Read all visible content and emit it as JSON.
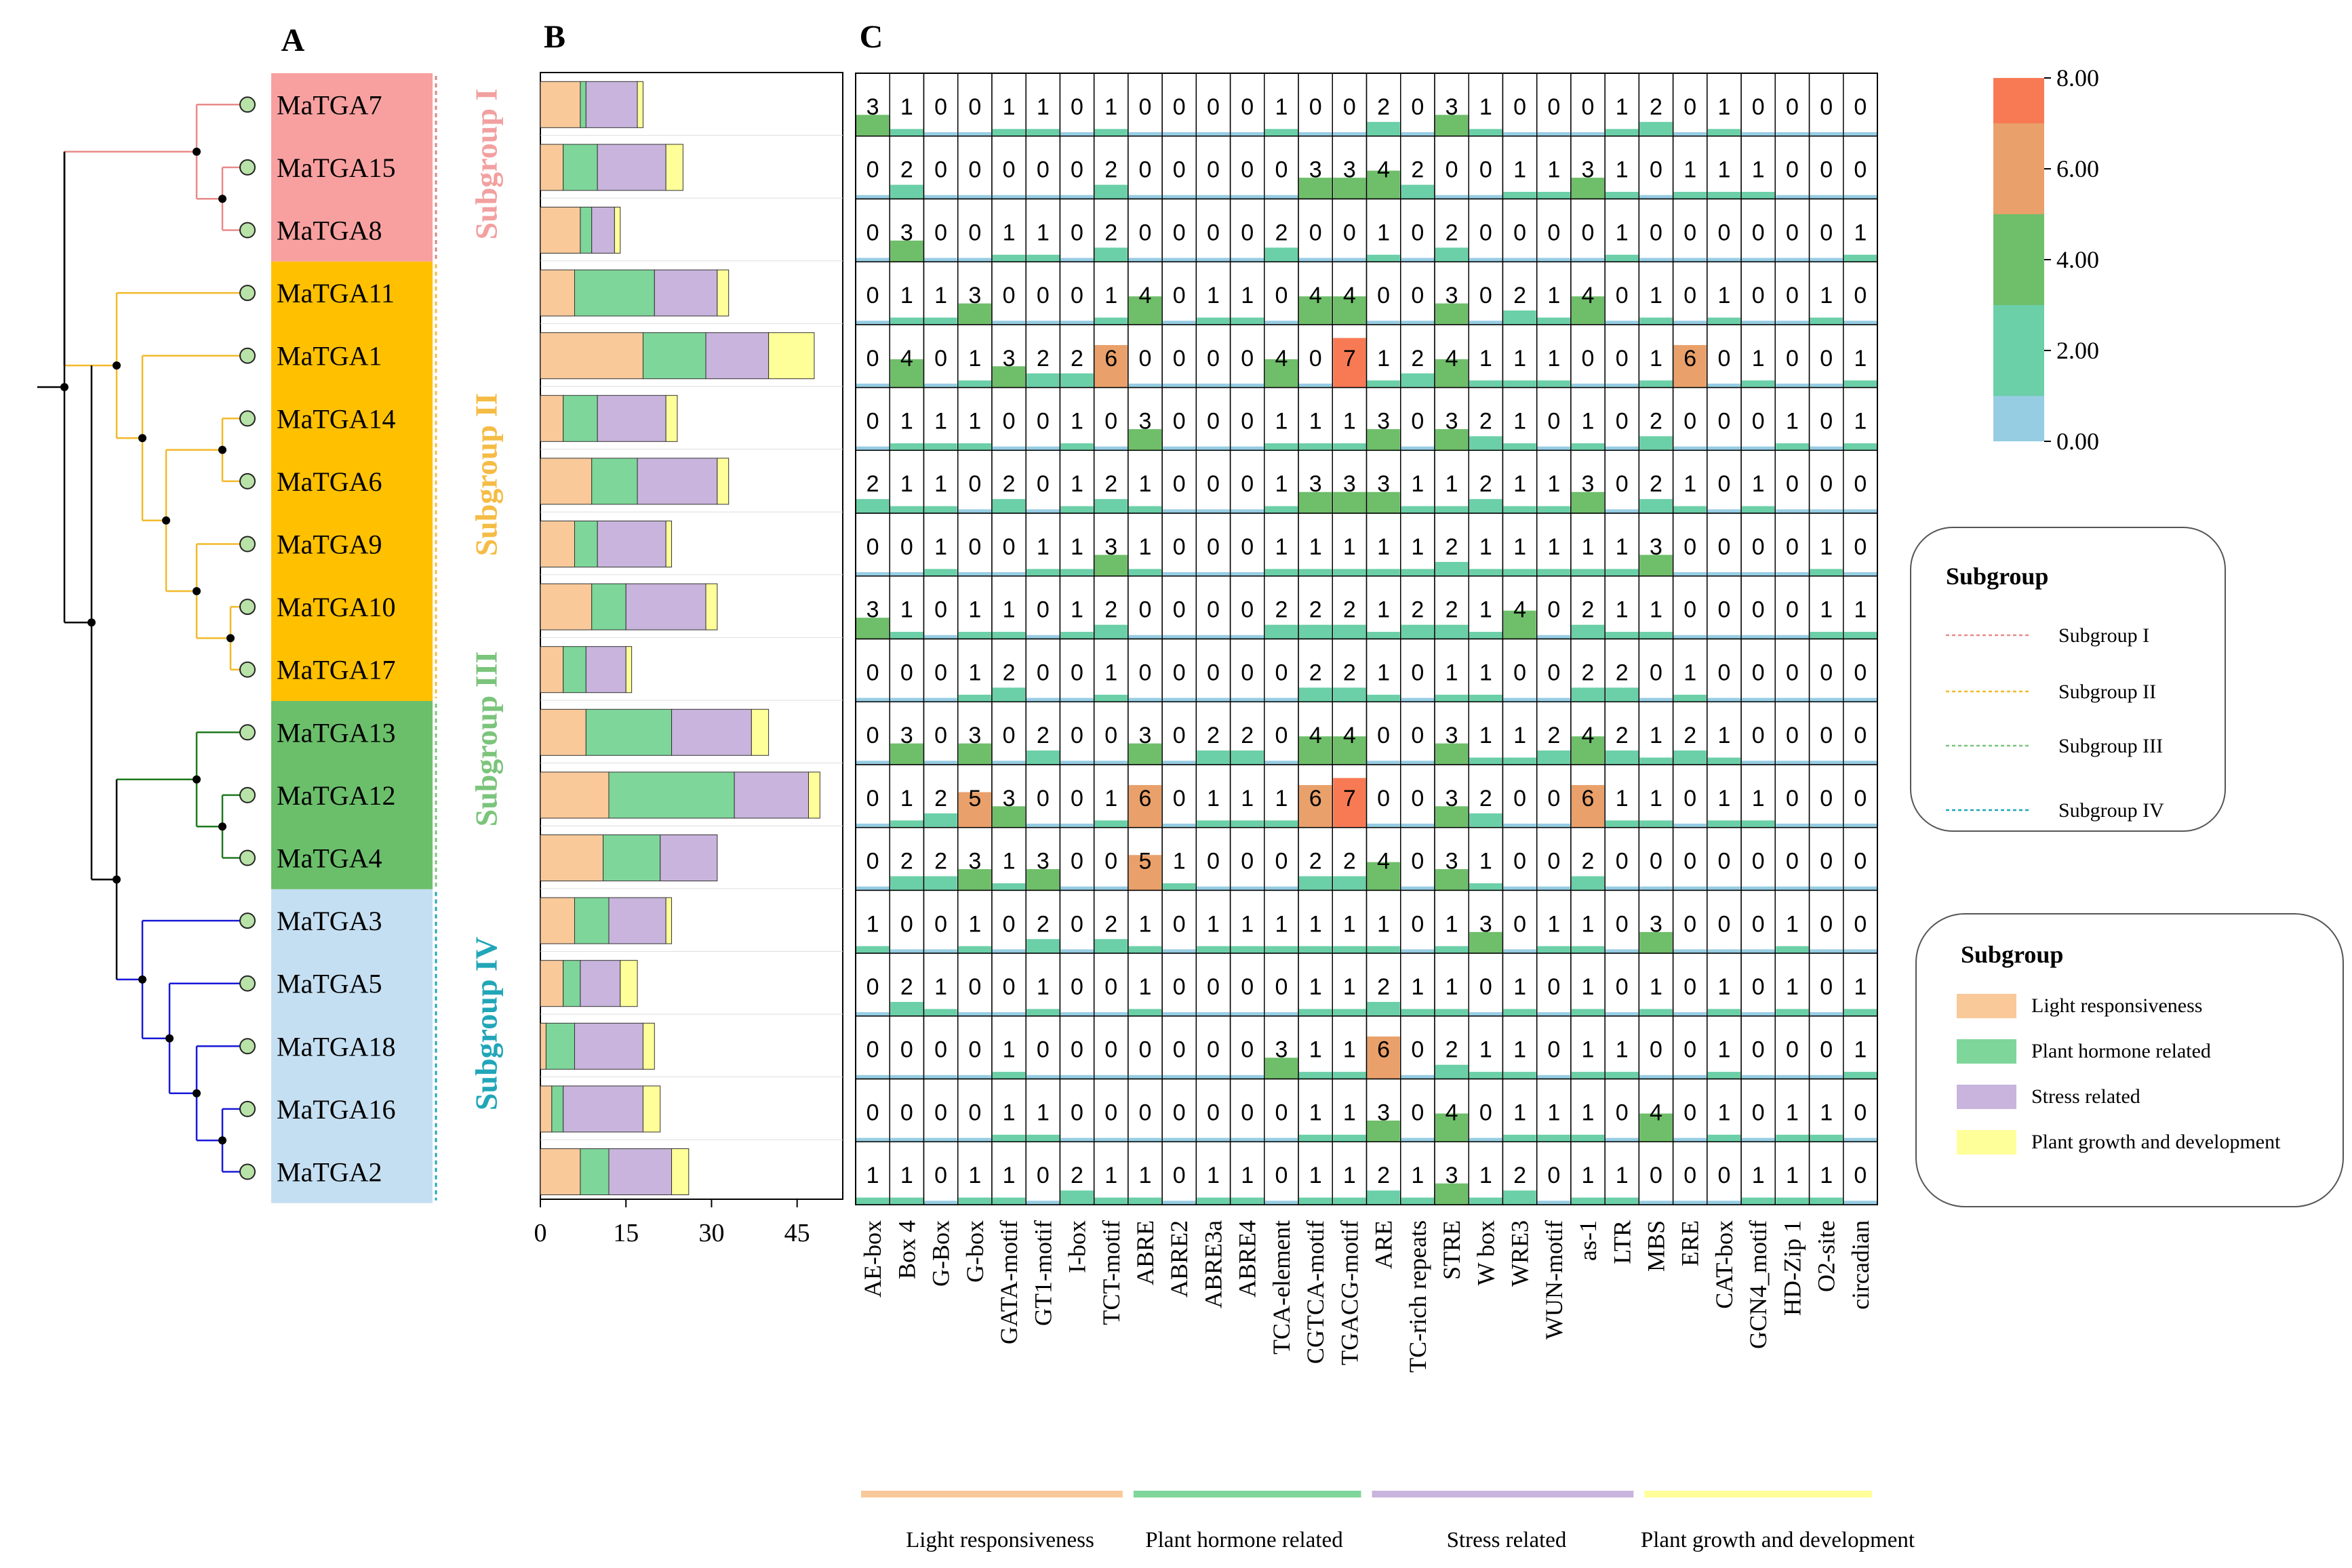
{
  "panels": {
    "a": "A",
    "b": "B",
    "c": "C"
  },
  "genes": [
    "MaTGA7",
    "MaTGA15",
    "MaTGA8",
    "MaTGA11",
    "MaTGA1",
    "MaTGA14",
    "MaTGA6",
    "MaTGA9",
    "MaTGA10",
    "MaTGA17",
    "MaTGA13",
    "MaTGA12",
    "MaTGA4",
    "MaTGA3",
    "MaTGA5",
    "MaTGA18",
    "MaTGA16",
    "MaTGA2"
  ],
  "subgroups": [
    {
      "name": "Subgroup I",
      "rows": [
        0,
        2
      ],
      "bg": "#F8A0A0",
      "text_color": "#F2A0A0",
      "line_color": "#E88A8A",
      "divider": "#D98880"
    },
    {
      "name": "Subgroup II",
      "rows": [
        3,
        9
      ],
      "bg": "#FFC000",
      "text_color": "#F5BC45",
      "line_color": "#F2B92A",
      "divider": "#F5BC45"
    },
    {
      "name": "Subgroup III",
      "rows": [
        10,
        12
      ],
      "bg": "#6BBF6B",
      "text_color": "#7BC47B",
      "line_color": "#1E7A1E",
      "divider": "#7BC47B"
    },
    {
      "name": "Subgroup IV",
      "rows": [
        13,
        17
      ],
      "bg": "#C5DFF2",
      "text_color": "#21A6B8",
      "line_color": "#1818D8",
      "divider": "#21A6B8"
    }
  ],
  "colors": {
    "light": "#F9C99A",
    "hormone": "#7ED69A",
    "stress": "#C8B4DC",
    "growth": "#FFFF99",
    "node": "#B8E2A8",
    "tree": "#000000"
  },
  "legend_color": {
    "min": 0.0,
    "max": 8.0,
    "labels": [
      "8.00",
      "6.00",
      "4.00",
      "2.00",
      "0.00"
    ],
    "bands": [
      {
        "from": 0,
        "to": 1,
        "color": "#96CDE3"
      },
      {
        "from": 1,
        "to": 3,
        "color": "#6BCFA8"
      },
      {
        "from": 3,
        "to": 5,
        "color": "#6FBE6A"
      },
      {
        "from": 5,
        "to": 7,
        "color": "#E9A06A"
      },
      {
        "from": 7,
        "to": 8,
        "color": "#F87A55"
      }
    ]
  },
  "legend_subgroup_lines": {
    "title": "Subgroup",
    "items": [
      "Subgroup I",
      "Subgroup II",
      "Subgroup III",
      "Subgroup IV"
    ]
  },
  "legend_categories": {
    "title": "Subgroup",
    "items": [
      "Light responsiveness",
      "Plant hormone related",
      "Stress related",
      "Plant growth and development"
    ]
  },
  "bottom_categories": [
    "Light responsiveness",
    "Plant hormone related",
    "Stress related",
    "Plant growth and development"
  ],
  "chart_data": [
    {
      "type": "bar",
      "orientation": "horizontal",
      "stacked": true,
      "title": "B",
      "categories": [
        "MaTGA7",
        "MaTGA15",
        "MaTGA8",
        "MaTGA11",
        "MaTGA1",
        "MaTGA14",
        "MaTGA6",
        "MaTGA9",
        "MaTGA10",
        "MaTGA17",
        "MaTGA13",
        "MaTGA12",
        "MaTGA4",
        "MaTGA3",
        "MaTGA5",
        "MaTGA18",
        "MaTGA16",
        "MaTGA2"
      ],
      "series": [
        {
          "name": "Light responsiveness",
          "values": [
            7,
            4,
            7,
            6,
            18,
            4,
            9,
            6,
            9,
            4,
            8,
            12,
            11,
            6,
            4,
            1,
            2,
            7
          ]
        },
        {
          "name": "Plant hormone related",
          "values": [
            1,
            6,
            2,
            14,
            11,
            6,
            8,
            4,
            6,
            4,
            15,
            22,
            10,
            6,
            3,
            5,
            2,
            5
          ]
        },
        {
          "name": "Stress related",
          "values": [
            9,
            12,
            4,
            11,
            11,
            12,
            14,
            12,
            14,
            7,
            14,
            13,
            10,
            10,
            7,
            12,
            14,
            11
          ]
        },
        {
          "name": "Plant growth and development",
          "values": [
            1,
            3,
            1,
            2,
            8,
            2,
            2,
            1,
            2,
            1,
            3,
            2,
            0,
            1,
            3,
            2,
            3,
            3
          ]
        }
      ],
      "xlim": [
        0,
        53
      ],
      "xticks": [
        "0",
        "15",
        "30",
        "45"
      ]
    },
    {
      "type": "heatmap",
      "title": "C",
      "rows": [
        "MaTGA7",
        "MaTGA15",
        "MaTGA8",
        "MaTGA11",
        "MaTGA1",
        "MaTGA14",
        "MaTGA6",
        "MaTGA9",
        "MaTGA10",
        "MaTGA17",
        "MaTGA13",
        "MaTGA12",
        "MaTGA4",
        "MaTGA3",
        "MaTGA5",
        "MaTGA18",
        "MaTGA16",
        "MaTGA2"
      ],
      "columns": [
        "AE-box",
        "Box 4",
        "G-Box",
        "G-box",
        "GATA-motif",
        "GT1-motif",
        "I-box",
        "TCT-motif",
        "ABRE",
        "ABRE2",
        "ABRE3a",
        "ABRE4",
        "TCA-element",
        "CGTCA-motif",
        "TGACG-motif",
        "ARE",
        "TC-rich repeats",
        "STRE",
        "W box",
        "WRE3",
        "WUN-motif",
        "as-1",
        "LTR",
        "MBS",
        "ERE",
        "CAT-box",
        "GCN4_motif",
        "HD-Zip 1",
        "O2-site",
        "circadian"
      ],
      "column_groups": [
        {
          "name": "Light responsiveness",
          "start": 0,
          "end": 7
        },
        {
          "name": "Plant hormone related",
          "start": 8,
          "end": 14
        },
        {
          "name": "Stress related",
          "start": 15,
          "end": 22
        },
        {
          "name": "Plant growth and development",
          "start": 23,
          "end": 29
        }
      ],
      "values": [
        [
          3,
          1,
          0,
          0,
          1,
          1,
          0,
          1,
          0,
          0,
          0,
          0,
          1,
          0,
          0,
          2,
          0,
          3,
          1,
          0,
          0,
          0,
          1,
          2,
          0,
          1,
          0,
          0,
          0,
          0
        ],
        [
          0,
          2,
          0,
          0,
          0,
          0,
          0,
          2,
          0,
          0,
          0,
          0,
          0,
          3,
          3,
          4,
          2,
          0,
          0,
          1,
          1,
          3,
          1,
          0,
          1,
          1,
          1,
          0,
          0,
          0
        ],
        [
          0,
          3,
          0,
          0,
          1,
          1,
          0,
          2,
          0,
          0,
          0,
          0,
          2,
          0,
          0,
          1,
          0,
          2,
          0,
          0,
          0,
          0,
          1,
          0,
          0,
          0,
          0,
          0,
          0,
          1
        ],
        [
          0,
          1,
          1,
          3,
          0,
          0,
          0,
          1,
          4,
          0,
          1,
          1,
          0,
          4,
          4,
          0,
          0,
          3,
          0,
          2,
          1,
          4,
          0,
          1,
          0,
          1,
          0,
          0,
          1,
          0
        ],
        [
          0,
          4,
          0,
          1,
          3,
          2,
          2,
          6,
          0,
          0,
          0,
          0,
          4,
          0,
          7,
          1,
          2,
          4,
          1,
          1,
          1,
          0,
          0,
          1,
          6,
          0,
          1,
          0,
          0,
          1
        ],
        [
          0,
          1,
          1,
          1,
          0,
          0,
          1,
          0,
          3,
          0,
          0,
          0,
          1,
          1,
          1,
          3,
          0,
          3,
          2,
          1,
          0,
          1,
          0,
          2,
          0,
          0,
          0,
          1,
          0,
          1
        ],
        [
          2,
          1,
          1,
          0,
          2,
          0,
          1,
          2,
          1,
          0,
          0,
          0,
          1,
          3,
          3,
          3,
          1,
          1,
          2,
          1,
          1,
          3,
          0,
          2,
          1,
          0,
          1,
          0,
          0,
          0
        ],
        [
          0,
          0,
          1,
          0,
          0,
          1,
          1,
          3,
          1,
          0,
          0,
          0,
          1,
          1,
          1,
          1,
          1,
          2,
          1,
          1,
          1,
          1,
          1,
          3,
          0,
          0,
          0,
          0,
          1,
          0
        ],
        [
          3,
          1,
          0,
          1,
          1,
          0,
          1,
          2,
          0,
          0,
          0,
          0,
          2,
          2,
          2,
          1,
          2,
          2,
          1,
          4,
          0,
          2,
          1,
          1,
          0,
          0,
          0,
          0,
          1,
          1
        ],
        [
          0,
          0,
          0,
          1,
          2,
          0,
          0,
          1,
          0,
          0,
          0,
          0,
          0,
          2,
          2,
          1,
          0,
          1,
          1,
          0,
          0,
          2,
          2,
          0,
          1,
          0,
          0,
          0,
          0,
          0
        ],
        [
          0,
          3,
          0,
          3,
          0,
          2,
          0,
          0,
          3,
          0,
          2,
          2,
          0,
          4,
          4,
          0,
          0,
          3,
          1,
          1,
          2,
          4,
          2,
          1,
          2,
          1,
          0,
          0,
          0,
          0
        ],
        [
          0,
          1,
          2,
          5,
          3,
          0,
          0,
          1,
          6,
          0,
          1,
          1,
          1,
          6,
          7,
          0,
          0,
          3,
          2,
          0,
          0,
          6,
          1,
          1,
          0,
          1,
          1,
          0,
          0,
          0
        ],
        [
          0,
          2,
          2,
          3,
          1,
          3,
          0,
          0,
          5,
          1,
          0,
          0,
          0,
          2,
          2,
          4,
          0,
          3,
          1,
          0,
          0,
          2,
          0,
          0,
          0,
          0,
          0,
          0,
          0,
          0
        ],
        [
          1,
          0,
          0,
          1,
          0,
          2,
          0,
          2,
          1,
          0,
          1,
          1,
          1,
          1,
          1,
          1,
          0,
          1,
          3,
          0,
          1,
          1,
          0,
          3,
          0,
          0,
          0,
          1,
          0,
          0
        ],
        [
          0,
          2,
          1,
          0,
          0,
          1,
          0,
          0,
          1,
          0,
          0,
          0,
          0,
          1,
          1,
          2,
          1,
          1,
          0,
          1,
          0,
          1,
          0,
          1,
          0,
          1,
          0,
          1,
          0,
          1
        ],
        [
          0,
          0,
          0,
          0,
          1,
          0,
          0,
          0,
          0,
          0,
          0,
          0,
          3,
          1,
          1,
          6,
          0,
          2,
          1,
          1,
          0,
          1,
          1,
          0,
          0,
          1,
          0,
          0,
          0,
          1
        ],
        [
          0,
          0,
          0,
          0,
          1,
          1,
          0,
          0,
          0,
          0,
          0,
          0,
          0,
          1,
          1,
          3,
          0,
          4,
          0,
          1,
          1,
          1,
          0,
          4,
          0,
          1,
          0,
          1,
          1,
          0
        ],
        [
          1,
          1,
          0,
          1,
          1,
          0,
          2,
          1,
          1,
          0,
          1,
          1,
          0,
          1,
          1,
          2,
          1,
          3,
          1,
          2,
          0,
          1,
          1,
          0,
          0,
          0,
          1,
          1,
          1,
          0
        ]
      ],
      "color_range": [
        0,
        8
      ]
    }
  ]
}
